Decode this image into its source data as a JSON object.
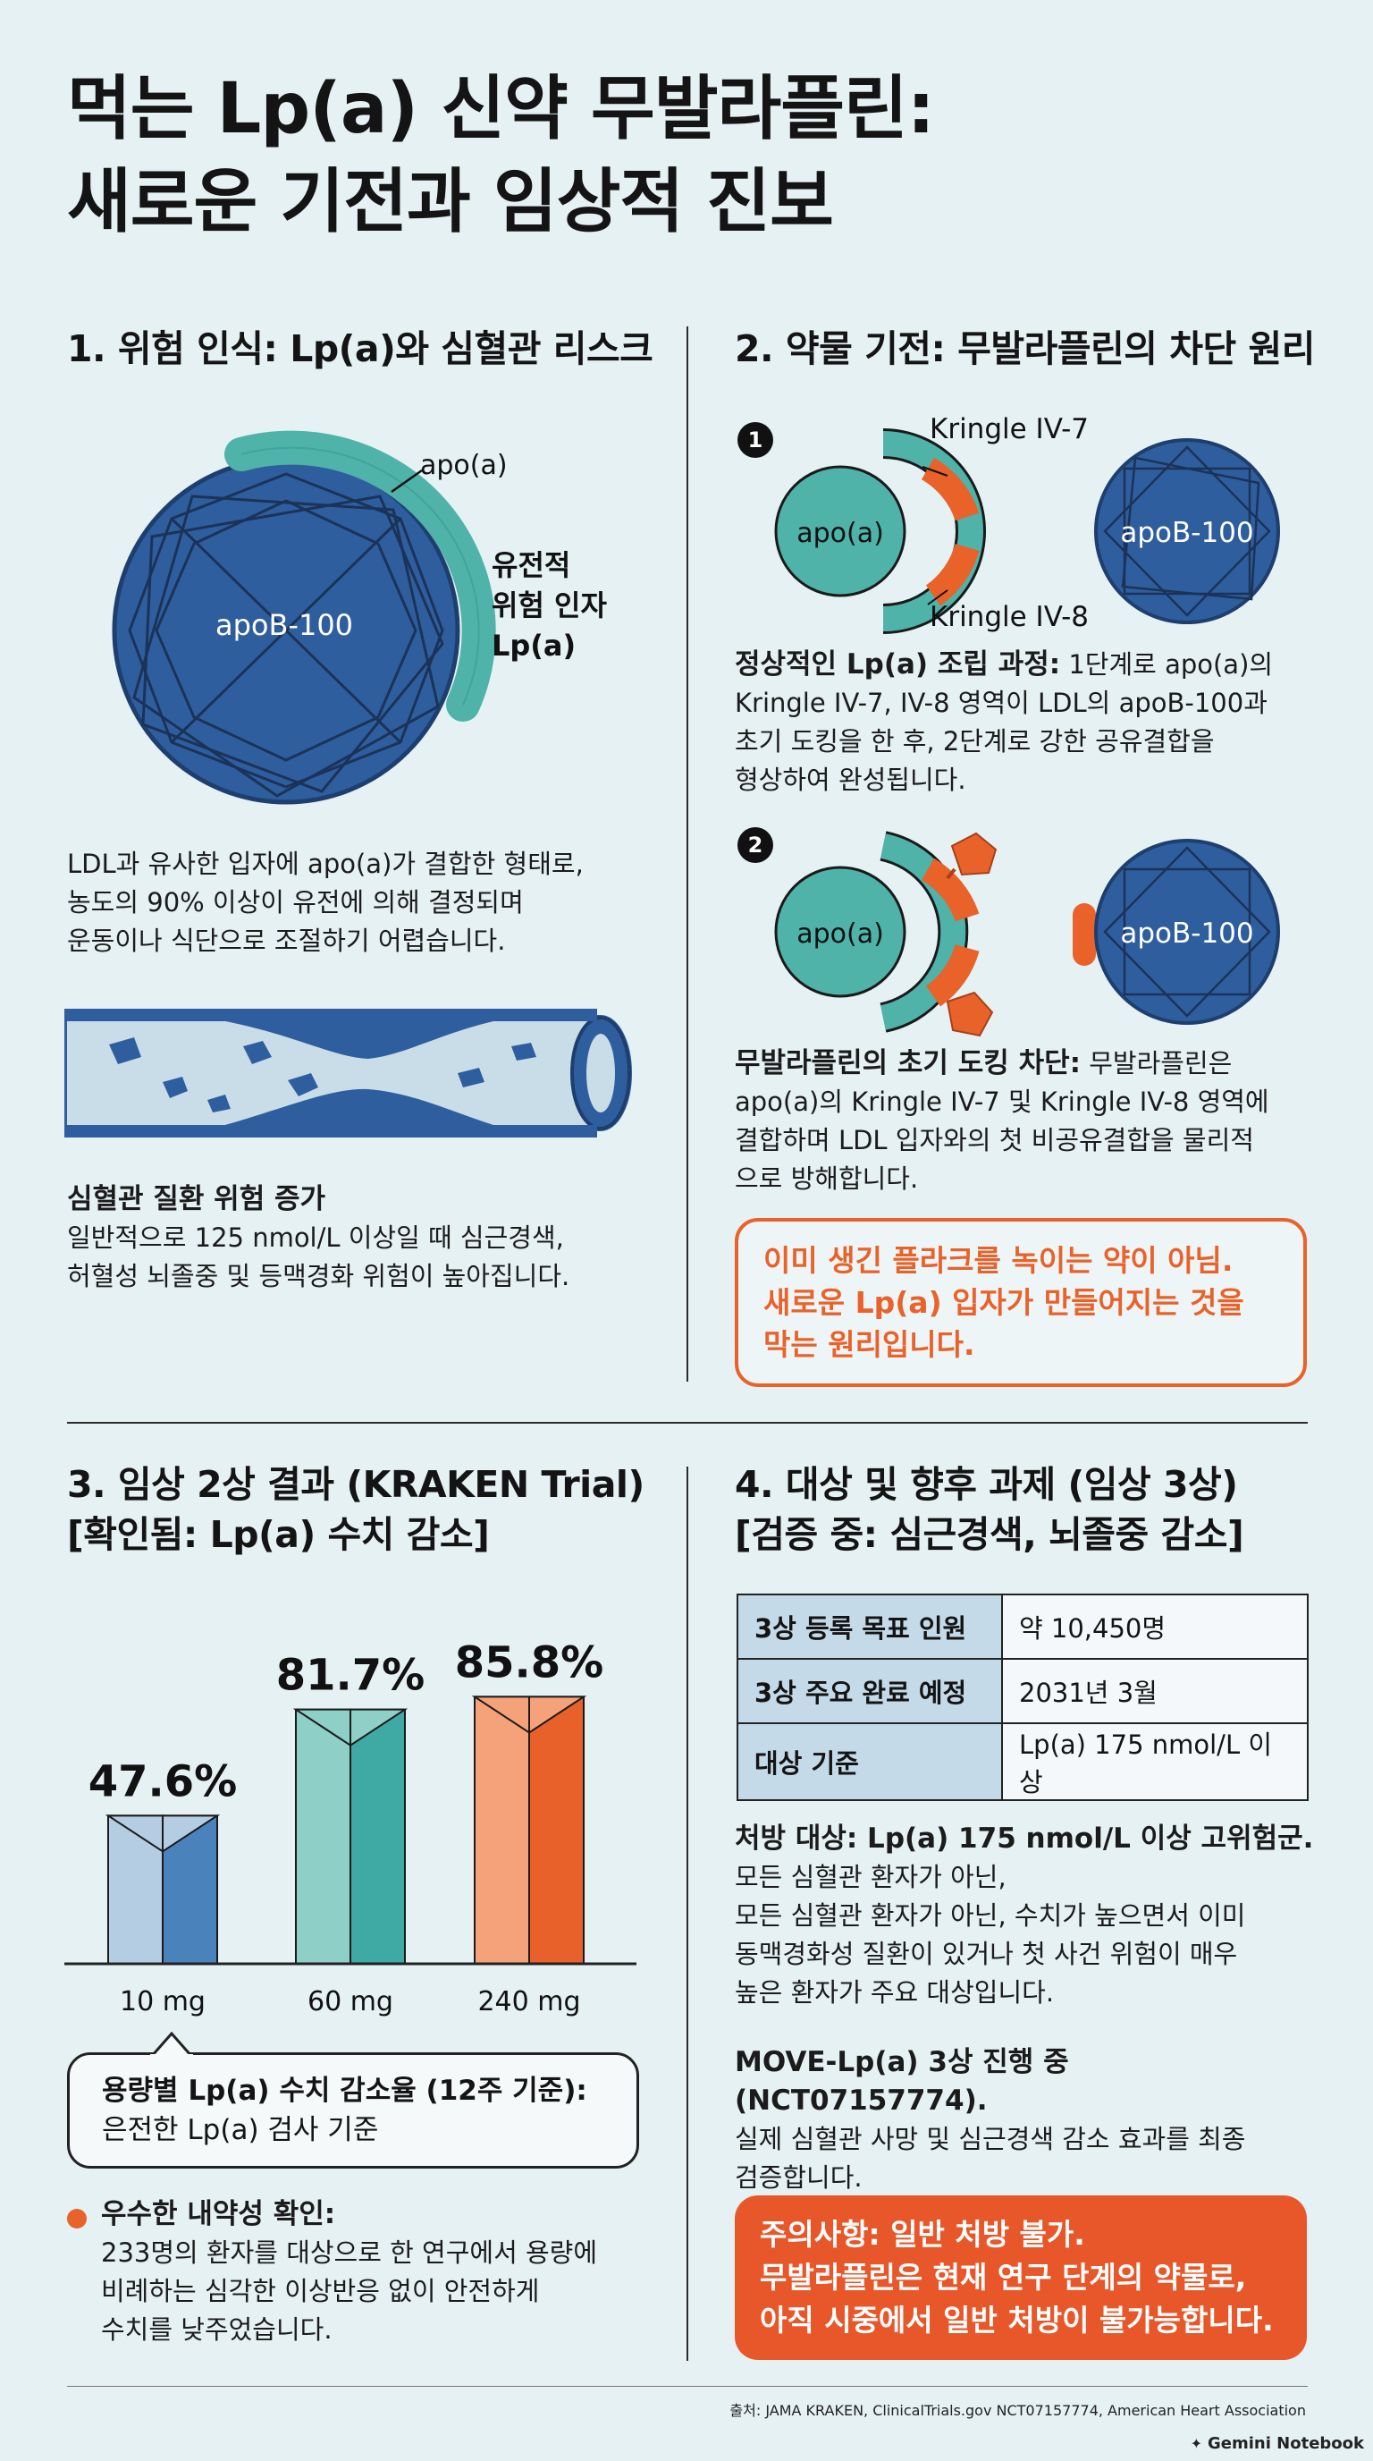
{
  "title": {
    "line1": "먹는 Lp(a) 신약 무발라플린:",
    "line2": "새로운 기전과 임상적 진보"
  },
  "sec1": {
    "heading": "1. 위험 인식: Lp(a)와 심혈관 리스크",
    "diagram": {
      "apoa_label": "apo(a)",
      "apob_label": "apoB-100",
      "side_label_1": "유전적",
      "side_label_2": "위험 인자",
      "side_label_3": "Lp(a)"
    },
    "desc_lines": [
      "LDL과 유사한 입자에 apo(a)가 결합한 형태로,",
      "농도의 90% 이상이 유전에 의해 결정되며",
      "운동이나 식단으로 조절하기 어렵습니다."
    ],
    "risk_title": "심혈관 질환 위험 증가",
    "risk_lines": [
      "일반적으로 125 nmol/L 이상일 때 심근경색,",
      "허혈성 뇌졸중 및 등맥경화 위험이 높아집니다."
    ]
  },
  "sec2": {
    "heading": "2. 약물 기전: 무발라플린의 차단 원리",
    "step1_num": "1",
    "step2_num": "2",
    "apoa_label": "apo(a)",
    "apob_label": "apoB-100",
    "kringle7": "Kringle IV-7",
    "kringle8": "Kringle IV-8",
    "normal_bold": "정상적인 Lp(a) 조립 과정:",
    "normal_lines": [
      " 1단계로 apo(a)의",
      "Kringle IV-7, IV-8 영역이 LDL의 apoB-100과",
      "초기 도킹을 한 후, 2단계로 강한 공유결합을",
      "형상하여 완성됩니다."
    ],
    "block_bold": "무발라플린의 초기 도킹 차단:",
    "block_lines": [
      " 무발라플린은",
      "apo(a)의 Kringle IV-7 및 Kringle IV-8 영역에",
      "결합하며 LDL 입자와의 첫 비공유결합을 물리적",
      "으로 방해합니다."
    ],
    "callout_lines": [
      "이미 생긴 플라크를 녹이는 약이 아님.",
      "새로운 Lp(a) 입자가 만들어지는 것을",
      "막는 원리입니다."
    ]
  },
  "sec3": {
    "heading_line1": "3. 임상 2상 결과 (KRAKEN Trial)",
    "heading_line2": "[확인됨: Lp(a) 수치 감소]",
    "bubble_bold": "용량별 Lp(a) 수치 감소율 (12주 기준):",
    "bubble_line2": "은전한 Lp(a) 검사 기준",
    "tol_title": "우수한 내약성 확인:",
    "tol_lines": [
      "233명의 환자를 대상으로 한 연구에서 용량에",
      "비례하는 심각한 이상반응 없이 안전하게",
      "수치를 낮주었습니다."
    ]
  },
  "chart_data": {
    "type": "bar",
    "categories": [
      "10 mg",
      "60 mg",
      "240 mg"
    ],
    "values": [
      47.6,
      81.7,
      85.8
    ],
    "value_labels": [
      "47.6%",
      "81.7%",
      "85.8%"
    ],
    "title": "",
    "xlabel": "",
    "ylabel": "",
    "ylim": [
      0,
      100
    ],
    "colors": [
      {
        "light": "#b5cde3",
        "dark": "#4a82bb"
      },
      {
        "light": "#8ecfc7",
        "dark": "#3fa9a3"
      },
      {
        "light": "#f5a27b",
        "dark": "#e8602a"
      }
    ]
  },
  "sec4": {
    "heading_line1": "4. 대상 및 향후 과제 (임상 3상)",
    "heading_line2": "[검증 중: 심근경색, 뇌졸중 감소]",
    "table": [
      {
        "label": "3상 등록 목표 인원",
        "value": "약 10,450명"
      },
      {
        "label": "3상 주요 완료 예정",
        "value": "2031년 3월"
      },
      {
        "label": "대상 기준",
        "value": "Lp(a) 175 nmol/L 이상"
      }
    ],
    "rx_bold": "처방 대상: Lp(a) 175 nmol/L 이상 고위험군.",
    "rx_lines": [
      "모든 심혈관 환자가 아닌,",
      "모든 심혈관 환자가 아닌, 수치가 높으면서 이미",
      "동맥경화성 질환이 있거나 첫 사건 위험이 매우",
      "높은 환자가 주요 대상입니다."
    ],
    "move_bold": "MOVE-Lp(a) 3상 진행 중 (NCT07157774).",
    "move_lines": [
      "실제 심혈관 사망 및 심근경색 감소 효과를 최종",
      "검증합니다."
    ],
    "caution_lines": [
      "주의사항: 일반 처방 불가.",
      "무발라플린은 현재 연구 단계의 약물로,",
      "아직 시중에서 일반 처방이 불가능합니다."
    ]
  },
  "footer": {
    "source": "출처: JAMA KRAKEN, ClinicalTrials.gov NCT07157774, American Heart Association",
    "brand": "Gemini Notebook"
  },
  "colors": {
    "background": "#e6f1f4",
    "navy": "#2f5e9e",
    "teal": "#4fb3a9",
    "orange": "#e8622a"
  }
}
